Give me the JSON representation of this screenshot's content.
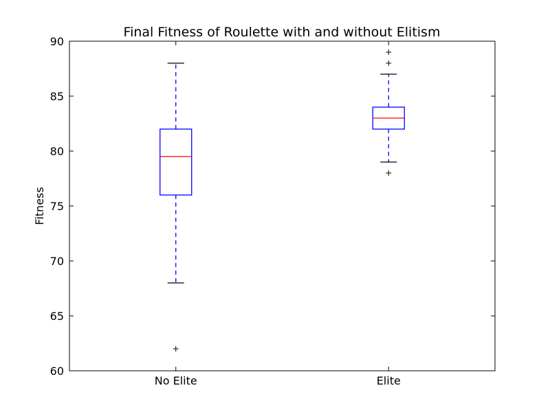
{
  "chart_data": {
    "type": "box",
    "title": "Final Fitness of Roulette with and without Elitism",
    "xlabel": "",
    "ylabel": "Fitness",
    "ylim": [
      60,
      90
    ],
    "yticks": [
      60,
      65,
      70,
      75,
      80,
      85,
      90
    ],
    "grid": false,
    "categories": [
      "No Elite",
      "Elite"
    ],
    "boxes": [
      {
        "label": "No Elite",
        "whisker_low": 68,
        "q1": 76,
        "median": 79.5,
        "q3": 82,
        "whisker_high": 88,
        "outliers": [
          62
        ]
      },
      {
        "label": "Elite",
        "whisker_low": 79,
        "q1": 82,
        "median": 83,
        "q3": 84,
        "whisker_high": 87,
        "outliers": [
          78,
          88,
          89
        ]
      }
    ],
    "colors": {
      "box": "#0000ff",
      "whisker": "#0000ff",
      "median": "#ff0000",
      "cap": "#000000",
      "flier": "#000000"
    }
  }
}
